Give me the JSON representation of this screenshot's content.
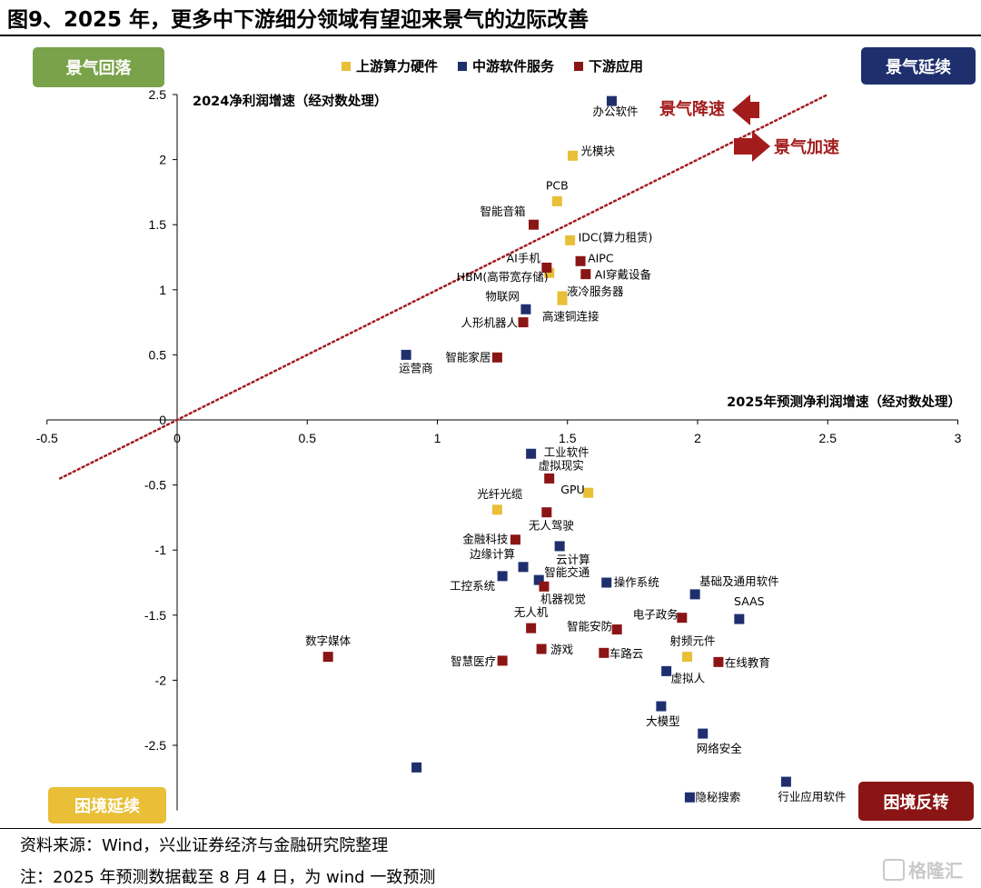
{
  "title": "图9、2025 年，更多中下游细分领域有望迎来景气的边际改善",
  "quadrants": {
    "top_left": "景气回落",
    "top_right": "景气延续",
    "bottom_left": "困境延续",
    "bottom_right": "困境反转"
  },
  "callouts": {
    "slowdown": "景气降速",
    "speedup": "景气加速"
  },
  "colors": {
    "upstream": "#e8bf37",
    "midstream": "#1f2f6e",
    "downstream": "#8b1515",
    "trend_line": "#a31c1c"
  },
  "footer": {
    "source": "资料来源：Wind，兴业证券经济与金融研究院整理",
    "note": "注：2025 年预测数据截至 8 月 4 日，为 wind 一致预测"
  },
  "watermark": "格隆汇",
  "chart_data": {
    "type": "scatter",
    "xlabel": "2025年预测净利润增速（经对数处理）",
    "ylabel": "2024净利润增速（经对数处理）",
    "xlim": [
      -0.5,
      3
    ],
    "ylim": [
      -3,
      2.5
    ],
    "xticks": [
      "-0.5",
      "0",
      "0.5",
      "1",
      "1.5",
      "2",
      "2.5",
      "3"
    ],
    "yticks": [
      "2.5",
      "2",
      "1.5",
      "1",
      "0.5",
      "0",
      "-0.5",
      "-1",
      "-1.5",
      "-2",
      "-2.5"
    ],
    "reference_line": {
      "x": [
        -0.45,
        2.5
      ],
      "y": [
        -0.45,
        2.5
      ]
    },
    "grid": false,
    "legend_position": "top-center",
    "series": [
      {
        "name": "上游算力硬件",
        "color": "#e8bf37",
        "points": [
          {
            "label": "光模块",
            "x": 1.52,
            "y": 2.03
          },
          {
            "label": "PCB",
            "x": 1.46,
            "y": 1.68
          },
          {
            "label": "IDC(算力租赁)",
            "x": 1.51,
            "y": 1.38
          },
          {
            "label": "HBM(高带宽存储)",
            "x": 1.43,
            "y": 1.13
          },
          {
            "label": "液冷服务器",
            "x": 1.48,
            "y": 0.95
          },
          {
            "label": "高速铜连接",
            "x": 1.48,
            "y": 0.92
          },
          {
            "label": "GPU",
            "x": 1.58,
            "y": -0.56
          },
          {
            "label": "光纤光缆",
            "x": 1.23,
            "y": -0.69
          },
          {
            "label": "射频元件",
            "x": 1.96,
            "y": -1.82
          }
        ]
      },
      {
        "name": "中游软件服务",
        "color": "#1f2f6e",
        "points": [
          {
            "label": "办公软件",
            "x": 1.67,
            "y": 2.45
          },
          {
            "label": "物联网",
            "x": 1.34,
            "y": 0.85
          },
          {
            "label": "运营商",
            "x": 0.88,
            "y": 0.5
          },
          {
            "label": "工业软件",
            "x": 1.36,
            "y": -0.26
          },
          {
            "label": "云计算",
            "x": 1.47,
            "y": -0.97
          },
          {
            "label": "边缘计算",
            "x": 1.33,
            "y": -1.13
          },
          {
            "label": "工控系统",
            "x": 1.25,
            "y": -1.2
          },
          {
            "label": "智能交通",
            "x": 1.39,
            "y": -1.23
          },
          {
            "label": "操作系统",
            "x": 1.65,
            "y": -1.25
          },
          {
            "label": "基础及通用软件",
            "x": 1.99,
            "y": -1.34
          },
          {
            "label": "SAAS",
            "x": 2.16,
            "y": -1.53
          },
          {
            "label": "虚拟人",
            "x": 1.88,
            "y": -1.93
          },
          {
            "label": "大模型",
            "x": 1.86,
            "y": -2.2
          },
          {
            "label": "网络安全",
            "x": 2.02,
            "y": -2.41
          },
          {
            "label": "",
            "x": 0.92,
            "y": -2.67
          },
          {
            "label": "行业应用软件",
            "x": 2.34,
            "y": -2.78
          },
          {
            "label": "隐秘搜索",
            "x": 1.97,
            "y": -2.9
          }
        ]
      },
      {
        "name": "下游应用",
        "color": "#8b1515",
        "points": [
          {
            "label": "智能音箱",
            "x": 1.37,
            "y": 1.5
          },
          {
            "label": "AIPC",
            "x": 1.55,
            "y": 1.22
          },
          {
            "label": "AI手机",
            "x": 1.42,
            "y": 1.17
          },
          {
            "label": "AI穿戴设备",
            "x": 1.57,
            "y": 1.12
          },
          {
            "label": "人形机器人",
            "x": 1.33,
            "y": 0.75
          },
          {
            "label": "智能家居",
            "x": 1.23,
            "y": 0.48
          },
          {
            "label": "虚拟现实",
            "x": 1.43,
            "y": -0.45
          },
          {
            "label": "无人驾驶",
            "x": 1.42,
            "y": -0.71
          },
          {
            "label": "金融科技",
            "x": 1.3,
            "y": -0.92
          },
          {
            "label": "机器视觉",
            "x": 1.41,
            "y": -1.28
          },
          {
            "label": "电子政务",
            "x": 1.94,
            "y": -1.52
          },
          {
            "label": "无人机",
            "x": 1.36,
            "y": -1.6
          },
          {
            "label": "智能安防",
            "x": 1.69,
            "y": -1.61
          },
          {
            "label": "游戏",
            "x": 1.4,
            "y": -1.76
          },
          {
            "label": "车路云",
            "x": 1.64,
            "y": -1.79
          },
          {
            "label": "智慧医疗",
            "x": 1.25,
            "y": -1.85
          },
          {
            "label": "在线教育",
            "x": 2.08,
            "y": -1.86
          },
          {
            "label": "数字媒体",
            "x": 0.58,
            "y": -1.82
          }
        ]
      }
    ]
  }
}
